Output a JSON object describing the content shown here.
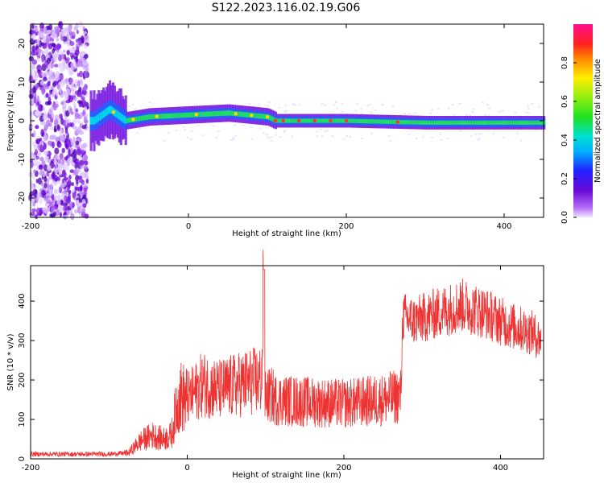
{
  "title": "S122.2023.116.02.19.G06",
  "chart_data": [
    {
      "type": "heatmap",
      "xlabel": "Height of straight line (km)",
      "ylabel": "Frequency (Hz)",
      "xlim": [
        -200,
        450
      ],
      "ylim": [
        -25,
        25
      ],
      "xticks": [
        -200,
        0,
        200,
        400
      ],
      "yticks": [
        -20,
        -10,
        0,
        10,
        20
      ],
      "colorbar": {
        "label": "Normalized spectral amplitude",
        "range": [
          0.0,
          1.0
        ],
        "ticks": [
          0.0,
          0.2,
          0.4,
          0.6,
          0.8
        ],
        "colormap": "rainbow (purple → blue → cyan → green → yellow → red → magenta)"
      },
      "features": {
        "noise_region_x": [
          -200,
          -128
        ],
        "signal_start_x": -125,
        "band_center_hz": [
          [
            -120,
            0
          ],
          [
            -100,
            3
          ],
          [
            -80,
            0
          ],
          [
            -50,
            1
          ],
          [
            0,
            1.5
          ],
          [
            50,
            2
          ],
          [
            100,
            1
          ],
          [
            110,
            0
          ],
          [
            200,
            0
          ],
          [
            300,
            -0.5
          ],
          [
            450,
            -0.5
          ]
        ]
      }
    },
    {
      "type": "line",
      "xlabel": "Height of straight line (km)",
      "ylabel": "SNR (10 * v/v)",
      "xlim": [
        -200,
        455
      ],
      "ylim": [
        0,
        490
      ],
      "xticks": [
        -200,
        0,
        200,
        400
      ],
      "yticks": [
        0,
        100,
        200,
        300,
        400
      ],
      "color": "#ee3333",
      "series": [
        {
          "x": [
            -200,
            -150,
            -100,
            -75,
            -60,
            -45,
            -30,
            -20,
            -15,
            -10,
            0,
            20,
            40,
            60,
            80,
            95,
            98,
            100,
            110,
            150,
            200,
            250,
            273,
            275,
            290,
            320,
            350,
            380,
            410,
            440,
            452
          ],
          "y": [
            12,
            12,
            12,
            15,
            45,
            60,
            50,
            60,
            120,
            160,
            150,
            190,
            175,
            185,
            195,
            200,
            480,
            190,
            150,
            145,
            140,
            150,
            160,
            360,
            350,
            370,
            390,
            370,
            340,
            320,
            300
          ]
        }
      ]
    }
  ]
}
